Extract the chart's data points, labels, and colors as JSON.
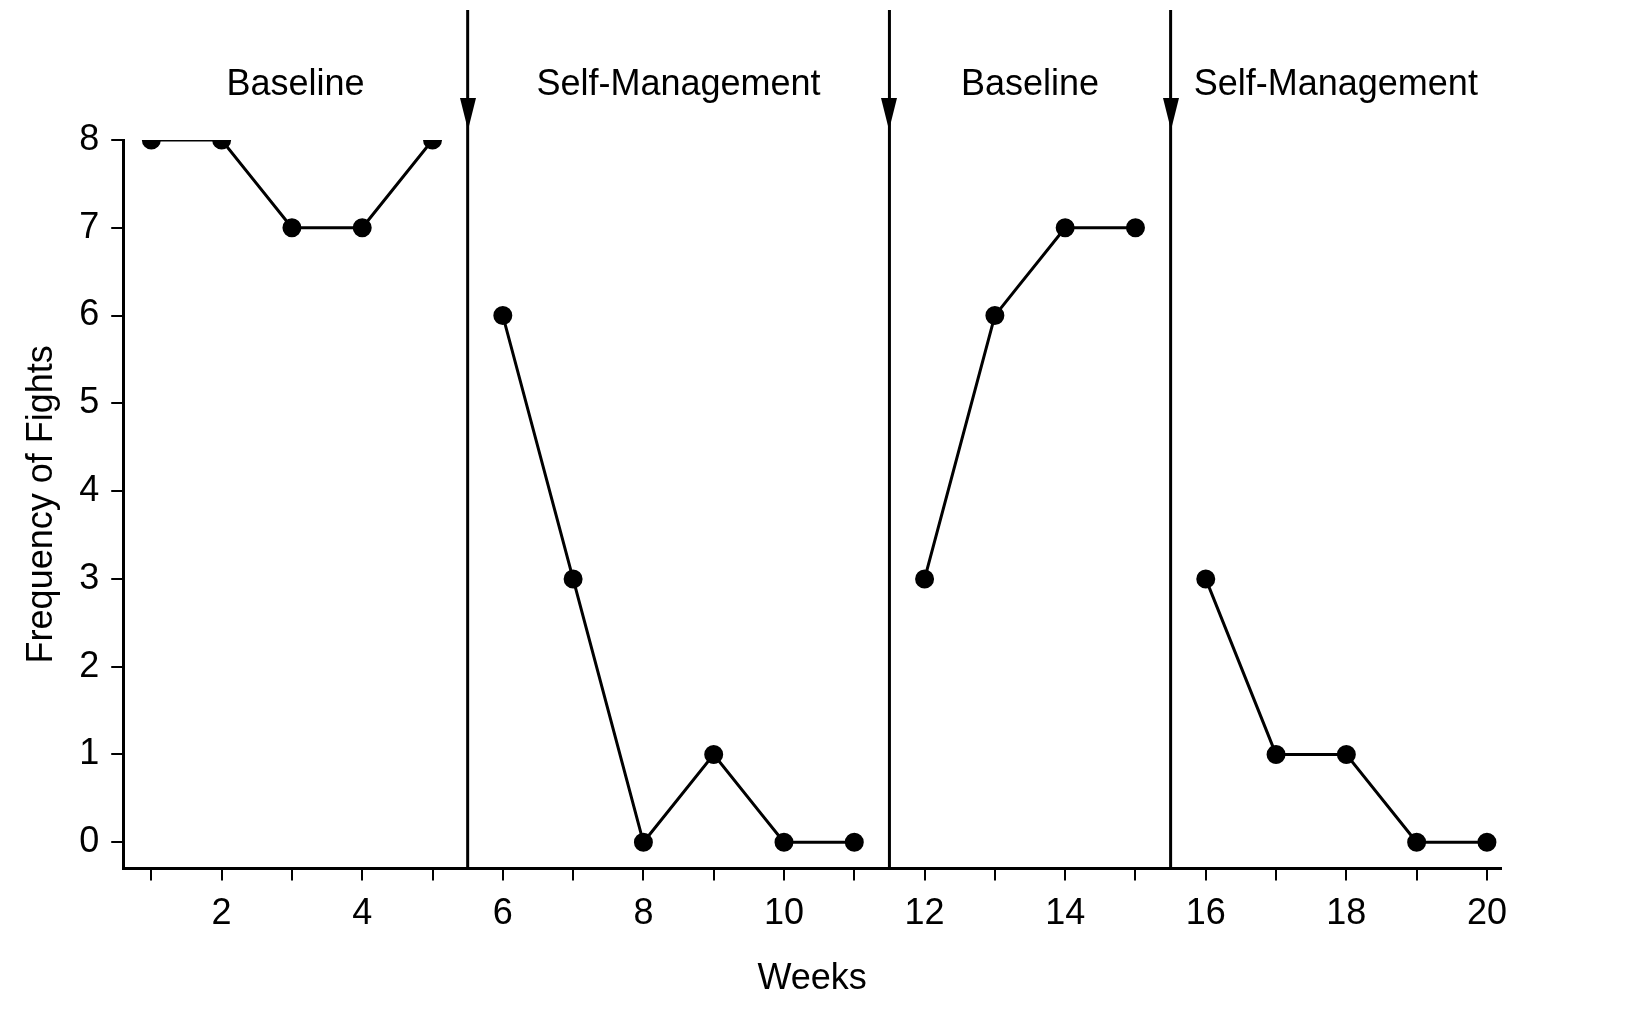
{
  "chart_data": {
    "type": "line",
    "xlabel": "Weeks",
    "ylabel": "Frequency of Fights",
    "series": [
      {
        "color": "#000000",
        "x": [
          1,
          2,
          3,
          4,
          5
        ],
        "values": [
          8,
          8,
          7,
          7,
          8
        ]
      },
      {
        "color": "#000000",
        "x": [
          6,
          7,
          8,
          9,
          10,
          11
        ],
        "values": [
          6,
          3,
          0,
          1,
          0,
          0
        ]
      },
      {
        "color": "#000000",
        "x": [
          12,
          13,
          14,
          15
        ],
        "values": [
          3,
          6,
          7,
          7
        ]
      },
      {
        "color": "#000000",
        "x": [
          16,
          17,
          18,
          19,
          20
        ],
        "values": [
          3,
          1,
          1,
          0,
          0
        ]
      }
    ],
    "xlim": [
      0.6,
      20.2
    ],
    "xticks": [
      {
        "value": 1,
        "label": null
      },
      2,
      {
        "value": 3,
        "label": null
      },
      4,
      {
        "value": 5,
        "label": null
      },
      6,
      {
        "value": 7,
        "label": null
      },
      8,
      {
        "value": 9,
        "label": null
      },
      10,
      {
        "value": 11,
        "label": null
      },
      12,
      {
        "value": 13,
        "label": null
      },
      14,
      {
        "value": 15,
        "label": null
      },
      16,
      {
        "value": 17,
        "label": null
      },
      18,
      {
        "value": 19,
        "label": null
      },
      20
    ],
    "ylim": [
      -0.3,
      8
    ],
    "yticks": [
      0,
      1,
      2,
      3,
      4,
      5,
      6,
      7,
      8
    ],
    "ref_lines": [
      {
        "axis": "x",
        "value": 5.5,
        "color": "#000000"
      },
      {
        "axis": "x",
        "value": 11.5,
        "color": "#000000"
      },
      {
        "axis": "x",
        "value": 15.5,
        "color": "#000000"
      }
    ],
    "annotations": [
      "Baseline",
      "Self-Management",
      "Baseline",
      "Self-Management"
    ],
    "grid": false,
    "legend": false,
    "marker": "circle",
    "line_style": "solid"
  }
}
